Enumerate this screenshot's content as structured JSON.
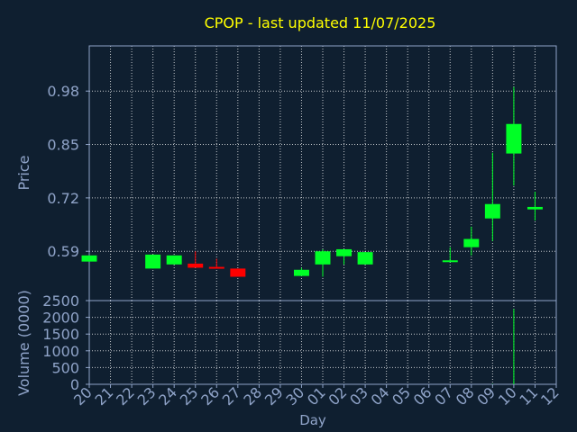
{
  "chart_data": {
    "type": "candlestick",
    "title": "CPOP - last updated 11/07/2025",
    "xlabel": "Day",
    "x_ticks": [
      "20",
      "21",
      "22",
      "23",
      "24",
      "25",
      "26",
      "27",
      "28",
      "29",
      "30",
      "01",
      "02",
      "03",
      "04",
      "05",
      "06",
      "07",
      "08",
      "09",
      "10",
      "11",
      "12"
    ],
    "price_panel": {
      "ylabel": "Price",
      "ylim": [
        0.47,
        1.09
      ],
      "y_ticks": [
        "0.59",
        "0.72",
        "0.85",
        "0.98"
      ],
      "y_tick_values": [
        0.59,
        0.72,
        0.85,
        0.98
      ]
    },
    "volume_panel": {
      "ylabel": "Volume (0000)",
      "ylim": [
        0,
        2500
      ],
      "y_ticks": [
        "0",
        "500",
        "1000",
        "1500",
        "2000",
        "2500"
      ],
      "y_tick_values": [
        0,
        500,
        1000,
        1500,
        2000,
        2500
      ]
    },
    "series": [
      {
        "day": "20",
        "open": 0.565,
        "close": 0.58,
        "high": 0.58,
        "low": 0.565,
        "volume": 0
      },
      {
        "day": "23",
        "open": 0.548,
        "close": 0.582,
        "high": 0.582,
        "low": 0.548,
        "volume": 0
      },
      {
        "day": "24",
        "open": 0.558,
        "close": 0.58,
        "high": 0.58,
        "low": 0.558,
        "volume": 0
      },
      {
        "day": "25",
        "open": 0.56,
        "close": 0.55,
        "high": 0.59,
        "low": 0.55,
        "volume": 0
      },
      {
        "day": "26",
        "open": 0.552,
        "close": 0.548,
        "high": 0.572,
        "low": 0.548,
        "volume": 0
      },
      {
        "day": "27",
        "open": 0.548,
        "close": 0.528,
        "high": 0.548,
        "low": 0.528,
        "volume": 0
      },
      {
        "day": "30",
        "open": 0.53,
        "close": 0.545,
        "high": 0.55,
        "low": 0.53,
        "volume": 0
      },
      {
        "day": "01",
        "open": 0.558,
        "close": 0.59,
        "high": 0.595,
        "low": 0.528,
        "volume": 0
      },
      {
        "day": "02",
        "open": 0.578,
        "close": 0.595,
        "high": 0.595,
        "low": 0.558,
        "volume": 0
      },
      {
        "day": "03",
        "open": 0.558,
        "close": 0.588,
        "high": 0.588,
        "low": 0.558,
        "volume": 0
      },
      {
        "day": "07",
        "open": 0.565,
        "close": 0.568,
        "high": 0.6,
        "low": 0.565,
        "volume": 0
      },
      {
        "day": "08",
        "open": 0.6,
        "close": 0.62,
        "high": 0.65,
        "low": 0.58,
        "volume": 0
      },
      {
        "day": "09",
        "open": 0.67,
        "close": 0.705,
        "high": 0.83,
        "low": 0.615,
        "volume": 10
      },
      {
        "day": "10",
        "open": 0.828,
        "close": 0.9,
        "high": 0.99,
        "low": 0.75,
        "volume": 2250
      },
      {
        "day": "11",
        "open": 0.692,
        "close": 0.698,
        "high": 0.735,
        "low": 0.665,
        "volume": 0
      }
    ],
    "colors": {
      "up": "#00ff26",
      "down": "#ff0000",
      "background": "#0f1f30",
      "axes": "#8fa3c8",
      "grid": "#ffffff",
      "title": "#ffff00",
      "tick_labels": "#8fa3c8"
    },
    "grid": true,
    "legend": "none"
  }
}
